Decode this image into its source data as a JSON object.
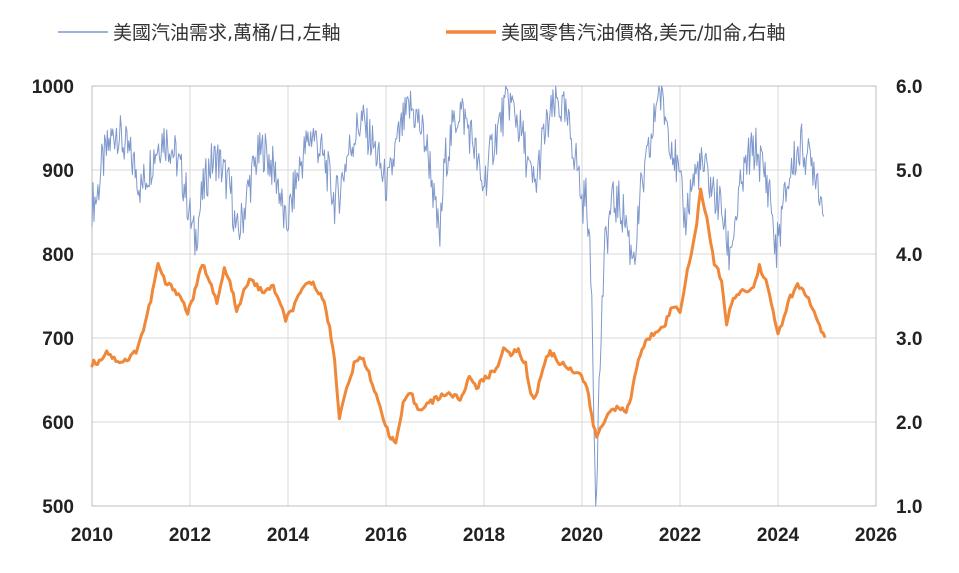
{
  "chart_data": {
    "type": "line",
    "title": "",
    "xlabel": "",
    "ylabel": "",
    "y2label": "",
    "xlim": [
      2010,
      2026
    ],
    "ylim": [
      500,
      1000
    ],
    "y2lim": [
      1.0,
      6.0
    ],
    "x_ticks": [
      "2010",
      "2012",
      "2014",
      "2016",
      "2018",
      "2020",
      "2022",
      "2024",
      "2026"
    ],
    "y_ticks": [
      "1000",
      "900",
      "800",
      "700",
      "600",
      "500"
    ],
    "y2_ticks": [
      "6.0",
      "5.0",
      "4.0",
      "3.0",
      "2.0",
      "1.0"
    ],
    "grid": "vertical and horizontal",
    "legend_position": "top",
    "series": [
      {
        "name": "美國汽油需求,萬桶/日,左軸",
        "axis": "left",
        "color": "#7f98cc",
        "points": [
          [
            2010.0,
            860
          ],
          [
            2010.1,
            868
          ],
          [
            2010.2,
            905
          ],
          [
            2010.35,
            930
          ],
          [
            2010.5,
            950
          ],
          [
            2010.6,
            935
          ],
          [
            2010.75,
            920
          ],
          [
            2010.9,
            900
          ],
          [
            2011.0,
            878
          ],
          [
            2011.15,
            900
          ],
          [
            2011.3,
            925
          ],
          [
            2011.45,
            940
          ],
          [
            2011.6,
            930
          ],
          [
            2011.75,
            910
          ],
          [
            2011.9,
            880
          ],
          [
            2012.0,
            845
          ],
          [
            2012.1,
            815
          ],
          [
            2012.25,
            870
          ],
          [
            2012.4,
            905
          ],
          [
            2012.55,
            915
          ],
          [
            2012.7,
            895
          ],
          [
            2012.85,
            870
          ],
          [
            2012.95,
            820
          ],
          [
            2013.05,
            838
          ],
          [
            2013.2,
            880
          ],
          [
            2013.35,
            912
          ],
          [
            2013.5,
            925
          ],
          [
            2013.65,
            908
          ],
          [
            2013.8,
            885
          ],
          [
            2013.95,
            830
          ],
          [
            2014.05,
            855
          ],
          [
            2014.2,
            895
          ],
          [
            2014.35,
            925
          ],
          [
            2014.5,
            945
          ],
          [
            2014.65,
            925
          ],
          [
            2014.8,
            900
          ],
          [
            2014.95,
            862
          ],
          [
            2015.05,
            875
          ],
          [
            2015.2,
            915
          ],
          [
            2015.35,
            940
          ],
          [
            2015.5,
            960
          ],
          [
            2015.65,
            942
          ],
          [
            2015.8,
            920
          ],
          [
            2015.95,
            890
          ],
          [
            2016.05,
            880
          ],
          [
            2016.2,
            925
          ],
          [
            2016.35,
            955
          ],
          [
            2016.5,
            975
          ],
          [
            2016.65,
            960
          ],
          [
            2016.8,
            935
          ],
          [
            2016.92,
            900
          ],
          [
            2017.0,
            850
          ],
          [
            2017.1,
            820
          ],
          [
            2017.2,
            910
          ],
          [
            2017.35,
            945
          ],
          [
            2017.5,
            975
          ],
          [
            2017.65,
            955
          ],
          [
            2017.8,
            930
          ],
          [
            2017.95,
            880
          ],
          [
            2018.05,
            895
          ],
          [
            2018.2,
            935
          ],
          [
            2018.35,
            960
          ],
          [
            2018.5,
            985
          ],
          [
            2018.65,
            965
          ],
          [
            2018.8,
            935
          ],
          [
            2018.95,
            890
          ],
          [
            2019.05,
            880
          ],
          [
            2019.2,
            935
          ],
          [
            2019.35,
            962
          ],
          [
            2019.5,
            982
          ],
          [
            2019.65,
            965
          ],
          [
            2019.8,
            935
          ],
          [
            2019.92,
            900
          ],
          [
            2020.0,
            860
          ],
          [
            2020.1,
            870
          ],
          [
            2020.2,
            745
          ],
          [
            2020.28,
            508
          ],
          [
            2020.35,
            640
          ],
          [
            2020.45,
            795
          ],
          [
            2020.6,
            860
          ],
          [
            2020.75,
            860
          ],
          [
            2020.9,
            840
          ],
          [
            2021.0,
            800
          ],
          [
            2021.1,
            810
          ],
          [
            2021.2,
            870
          ],
          [
            2021.3,
            900
          ],
          [
            2021.45,
            945
          ],
          [
            2021.55,
            1000
          ],
          [
            2021.7,
            965
          ],
          [
            2021.85,
            930
          ],
          [
            2022.0,
            880
          ],
          [
            2022.1,
            840
          ],
          [
            2022.25,
            885
          ],
          [
            2022.4,
            905
          ],
          [
            2022.55,
            895
          ],
          [
            2022.7,
            870
          ],
          [
            2022.85,
            855
          ],
          [
            2023.0,
            800
          ],
          [
            2023.1,
            830
          ],
          [
            2023.25,
            880
          ],
          [
            2023.4,
            915
          ],
          [
            2023.55,
            925
          ],
          [
            2023.7,
            900
          ],
          [
            2023.85,
            870
          ],
          [
            2023.95,
            800
          ],
          [
            2024.05,
            835
          ],
          [
            2024.2,
            885
          ],
          [
            2024.35,
            915
          ],
          [
            2024.5,
            930
          ],
          [
            2024.62,
            912
          ],
          [
            2024.75,
            905
          ],
          [
            2024.85,
            880
          ],
          [
            2024.93,
            845
          ]
        ]
      },
      {
        "name": "美國零售汽油價格,美元/加侖,右軸",
        "axis": "right",
        "color": "#f0883a",
        "points": [
          [
            2010.0,
            2.7
          ],
          [
            2010.15,
            2.72
          ],
          [
            2010.3,
            2.85
          ],
          [
            2010.45,
            2.75
          ],
          [
            2010.6,
            2.72
          ],
          [
            2010.75,
            2.75
          ],
          [
            2010.9,
            2.85
          ],
          [
            2011.05,
            3.1
          ],
          [
            2011.2,
            3.45
          ],
          [
            2011.35,
            3.88
          ],
          [
            2011.5,
            3.65
          ],
          [
            2011.65,
            3.6
          ],
          [
            2011.8,
            3.5
          ],
          [
            2011.95,
            3.3
          ],
          [
            2012.1,
            3.55
          ],
          [
            2012.25,
            3.88
          ],
          [
            2012.4,
            3.7
          ],
          [
            2012.55,
            3.4
          ],
          [
            2012.7,
            3.82
          ],
          [
            2012.85,
            3.6
          ],
          [
            2012.95,
            3.3
          ],
          [
            2013.1,
            3.55
          ],
          [
            2013.25,
            3.72
          ],
          [
            2013.4,
            3.58
          ],
          [
            2013.55,
            3.55
          ],
          [
            2013.7,
            3.62
          ],
          [
            2013.85,
            3.38
          ],
          [
            2013.95,
            3.22
          ],
          [
            2014.1,
            3.35
          ],
          [
            2014.25,
            3.52
          ],
          [
            2014.4,
            3.68
          ],
          [
            2014.55,
            3.62
          ],
          [
            2014.7,
            3.5
          ],
          [
            2014.85,
            3.12
          ],
          [
            2014.95,
            2.75
          ],
          [
            2015.05,
            2.05
          ],
          [
            2015.2,
            2.4
          ],
          [
            2015.35,
            2.68
          ],
          [
            2015.5,
            2.78
          ],
          [
            2015.65,
            2.6
          ],
          [
            2015.8,
            2.3
          ],
          [
            2015.95,
            2.05
          ],
          [
            2016.1,
            1.8
          ],
          [
            2016.2,
            1.75
          ],
          [
            2016.35,
            2.2
          ],
          [
            2016.5,
            2.35
          ],
          [
            2016.65,
            2.15
          ],
          [
            2016.8,
            2.2
          ],
          [
            2016.95,
            2.25
          ],
          [
            2017.1,
            2.3
          ],
          [
            2017.25,
            2.35
          ],
          [
            2017.4,
            2.3
          ],
          [
            2017.55,
            2.28
          ],
          [
            2017.7,
            2.55
          ],
          [
            2017.85,
            2.42
          ],
          [
            2017.95,
            2.48
          ],
          [
            2018.1,
            2.55
          ],
          [
            2018.25,
            2.65
          ],
          [
            2018.4,
            2.85
          ],
          [
            2018.55,
            2.82
          ],
          [
            2018.7,
            2.85
          ],
          [
            2018.85,
            2.68
          ],
          [
            2018.95,
            2.35
          ],
          [
            2019.05,
            2.28
          ],
          [
            2019.2,
            2.65
          ],
          [
            2019.35,
            2.85
          ],
          [
            2019.5,
            2.72
          ],
          [
            2019.65,
            2.68
          ],
          [
            2019.8,
            2.62
          ],
          [
            2019.95,
            2.58
          ],
          [
            2020.1,
            2.42
          ],
          [
            2020.2,
            2.05
          ],
          [
            2020.3,
            1.82
          ],
          [
            2020.45,
            2.0
          ],
          [
            2020.6,
            2.18
          ],
          [
            2020.75,
            2.15
          ],
          [
            2020.9,
            2.12
          ],
          [
            2021.0,
            2.3
          ],
          [
            2021.15,
            2.75
          ],
          [
            2021.3,
            2.95
          ],
          [
            2021.5,
            3.08
          ],
          [
            2021.7,
            3.18
          ],
          [
            2021.85,
            3.38
          ],
          [
            2022.0,
            3.32
          ],
          [
            2022.15,
            3.8
          ],
          [
            2022.3,
            4.2
          ],
          [
            2022.42,
            4.75
          ],
          [
            2022.55,
            4.4
          ],
          [
            2022.7,
            3.9
          ],
          [
            2022.85,
            3.7
          ],
          [
            2022.95,
            3.15
          ],
          [
            2023.05,
            3.4
          ],
          [
            2023.2,
            3.55
          ],
          [
            2023.35,
            3.55
          ],
          [
            2023.5,
            3.6
          ],
          [
            2023.62,
            3.85
          ],
          [
            2023.75,
            3.7
          ],
          [
            2023.9,
            3.3
          ],
          [
            2024.0,
            3.05
          ],
          [
            2024.12,
            3.25
          ],
          [
            2024.25,
            3.48
          ],
          [
            2024.4,
            3.62
          ],
          [
            2024.55,
            3.55
          ],
          [
            2024.7,
            3.35
          ],
          [
            2024.85,
            3.12
          ],
          [
            2024.95,
            3.02
          ]
        ]
      }
    ]
  }
}
